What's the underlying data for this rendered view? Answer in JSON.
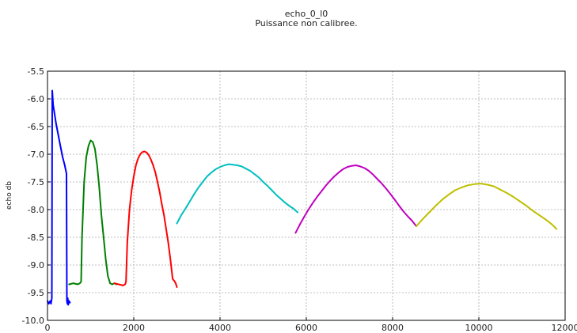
{
  "chart_data": {
    "type": "line",
    "title": "echo_0_l0",
    "subtitle": "Puissance non calibree.",
    "xlabel": "",
    "ylabel": "echo db",
    "xlim": [
      0,
      12000
    ],
    "ylim": [
      -10.0,
      -5.5
    ],
    "grid": true,
    "xticks": [
      0,
      2000,
      4000,
      6000,
      8000,
      10000,
      12000
    ],
    "xtick_labels": [
      "0",
      "2000",
      "4000",
      "6000",
      "8000",
      "10000",
      "12000"
    ],
    "yticks": [
      -10.0,
      -9.5,
      -9.0,
      -8.5,
      -8.0,
      -7.5,
      -7.0,
      -6.5,
      -6.0,
      -5.5
    ],
    "ytick_labels": [
      "-10.0",
      "-9.5",
      "-9.0",
      "-8.5",
      "-8.0",
      "-7.5",
      "-7.0",
      "-6.5",
      "-6.0",
      "-5.5"
    ],
    "series": [
      {
        "color": "#0000ff",
        "x": [
          0,
          30,
          60,
          80,
          100,
          110,
          130,
          160,
          200,
          250,
          300,
          350,
          400,
          440,
          450,
          460,
          470,
          480,
          500,
          520
        ],
        "y": [
          -9.65,
          -9.7,
          -9.65,
          -9.7,
          -9.6,
          -5.85,
          -6.1,
          -6.25,
          -6.45,
          -6.65,
          -6.85,
          -7.05,
          -7.2,
          -7.35,
          -9.65,
          -9.7,
          -9.6,
          -9.72,
          -9.65,
          -9.68
        ]
      },
      {
        "color": "#008000",
        "x": [
          500,
          600,
          700,
          750,
          780,
          800,
          850,
          900,
          950,
          1000,
          1050,
          1100,
          1150,
          1200,
          1250,
          1300,
          1350,
          1400,
          1440,
          1450,
          1500,
          1550,
          1600
        ],
        "y": [
          -9.35,
          -9.33,
          -9.35,
          -9.33,
          -9.3,
          -8.5,
          -7.5,
          -7.05,
          -6.85,
          -6.75,
          -6.78,
          -6.9,
          -7.2,
          -7.6,
          -8.1,
          -8.5,
          -8.9,
          -9.2,
          -9.3,
          -9.33,
          -9.35,
          -9.33,
          -9.35
        ]
      },
      {
        "color": "#ff0000",
        "x": [
          1550,
          1650,
          1750,
          1800,
          1820,
          1850,
          1900,
          1950,
          2000,
          2050,
          2100,
          2150,
          2200,
          2250,
          2300,
          2350,
          2400,
          2450,
          2500,
          2550,
          2600,
          2650,
          2700,
          2750,
          2800,
          2850,
          2900,
          2950,
          2970,
          2980,
          3000
        ],
        "y": [
          -9.33,
          -9.35,
          -9.37,
          -9.35,
          -9.3,
          -8.6,
          -8.0,
          -7.65,
          -7.4,
          -7.2,
          -7.08,
          -7.0,
          -6.96,
          -6.95,
          -6.97,
          -7.02,
          -7.1,
          -7.2,
          -7.33,
          -7.5,
          -7.68,
          -7.9,
          -8.1,
          -8.35,
          -8.6,
          -8.9,
          -9.25,
          -9.3,
          -9.33,
          -9.35,
          -9.4
        ]
      },
      {
        "color": "#00bfbf",
        "x": [
          3000,
          3100,
          3200,
          3300,
          3400,
          3500,
          3600,
          3700,
          3800,
          3900,
          4000,
          4100,
          4200,
          4300,
          4400,
          4500,
          4600,
          4700,
          4800,
          4900,
          5000,
          5100,
          5200,
          5300,
          5400,
          5500,
          5600,
          5700,
          5800
        ],
        "y": [
          -8.25,
          -8.1,
          -7.98,
          -7.85,
          -7.72,
          -7.6,
          -7.5,
          -7.4,
          -7.33,
          -7.27,
          -7.23,
          -7.2,
          -7.18,
          -7.19,
          -7.2,
          -7.22,
          -7.26,
          -7.3,
          -7.36,
          -7.42,
          -7.5,
          -7.57,
          -7.65,
          -7.73,
          -7.8,
          -7.87,
          -7.93,
          -7.98,
          -8.05
        ]
      },
      {
        "color": "#bf00bf",
        "x": [
          5750,
          5850,
          5950,
          6050,
          6150,
          6250,
          6350,
          6450,
          6550,
          6650,
          6750,
          6850,
          6950,
          7050,
          7150,
          7250,
          7350,
          7450,
          7550,
          7650,
          7750,
          7850,
          7950,
          8050,
          8150,
          8250,
          8350,
          8450,
          8550
        ],
        "y": [
          -8.42,
          -8.27,
          -8.13,
          -8.0,
          -7.88,
          -7.77,
          -7.67,
          -7.57,
          -7.48,
          -7.4,
          -7.33,
          -7.27,
          -7.23,
          -7.21,
          -7.2,
          -7.22,
          -7.25,
          -7.3,
          -7.37,
          -7.45,
          -7.53,
          -7.62,
          -7.72,
          -7.82,
          -7.93,
          -8.03,
          -8.12,
          -8.2,
          -8.3
        ]
      },
      {
        "color": "#bfbf00",
        "x": [
          8550,
          8700,
          8850,
          9000,
          9150,
          9300,
          9450,
          9600,
          9750,
          9900,
          10050,
          10200,
          10350,
          10500,
          10650,
          10800,
          10950,
          11100,
          11250,
          11400,
          11550,
          11700,
          11800
        ],
        "y": [
          -8.3,
          -8.17,
          -8.05,
          -7.93,
          -7.82,
          -7.73,
          -7.65,
          -7.6,
          -7.56,
          -7.54,
          -7.53,
          -7.55,
          -7.58,
          -7.64,
          -7.7,
          -7.77,
          -7.85,
          -7.93,
          -8.02,
          -8.1,
          -8.18,
          -8.27,
          -8.35
        ]
      }
    ]
  }
}
